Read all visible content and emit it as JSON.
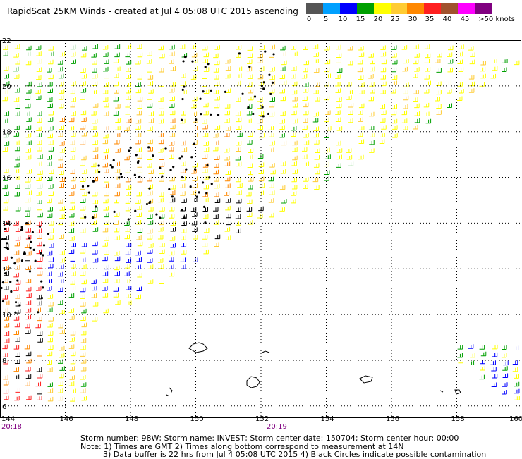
{
  "header": {
    "title": "RapidScat 25KM Winds - created at Jul  4 05:08 UTC 2015 ascending"
  },
  "legend": {
    "labels": [
      "0",
      "5",
      "10",
      "15",
      "20",
      "25",
      "30",
      "35",
      "40",
      "45",
      ">50 knots"
    ],
    "colors": [
      "#555555",
      "#00a0ff",
      "#0000ff",
      "#00a000",
      "#ffff00",
      "#ffcc33",
      "#ff8800",
      "#ff2020",
      "#a0522d",
      "#ff00ff",
      "#800080"
    ]
  },
  "map": {
    "lat_labels": [
      "22",
      "20",
      "18",
      "16",
      "14",
      "12",
      "10",
      "8",
      "6"
    ],
    "lon_labels": [
      "144",
      "146",
      "148",
      "150",
      "152",
      "154",
      "156",
      "158",
      "160"
    ],
    "lat_range": [
      5.5,
      22
    ],
    "lon_range": [
      144,
      160
    ]
  },
  "footer": {
    "time_left": "20:18",
    "time_mid": "20:19",
    "storm_info": "Storm number: 98W;  Storm name: INVEST;  Storm center date: 150704;  Storm center hour: 00:00",
    "note_line1": "Note: 1) Times are GMT  2) Times along bottom correspond to measurement at 14N",
    "note_line2": "3) Data buffer is 22 hrs from Jul  4 05:08 UTC 2015  4) Black Circles indicate possible contamination"
  }
}
